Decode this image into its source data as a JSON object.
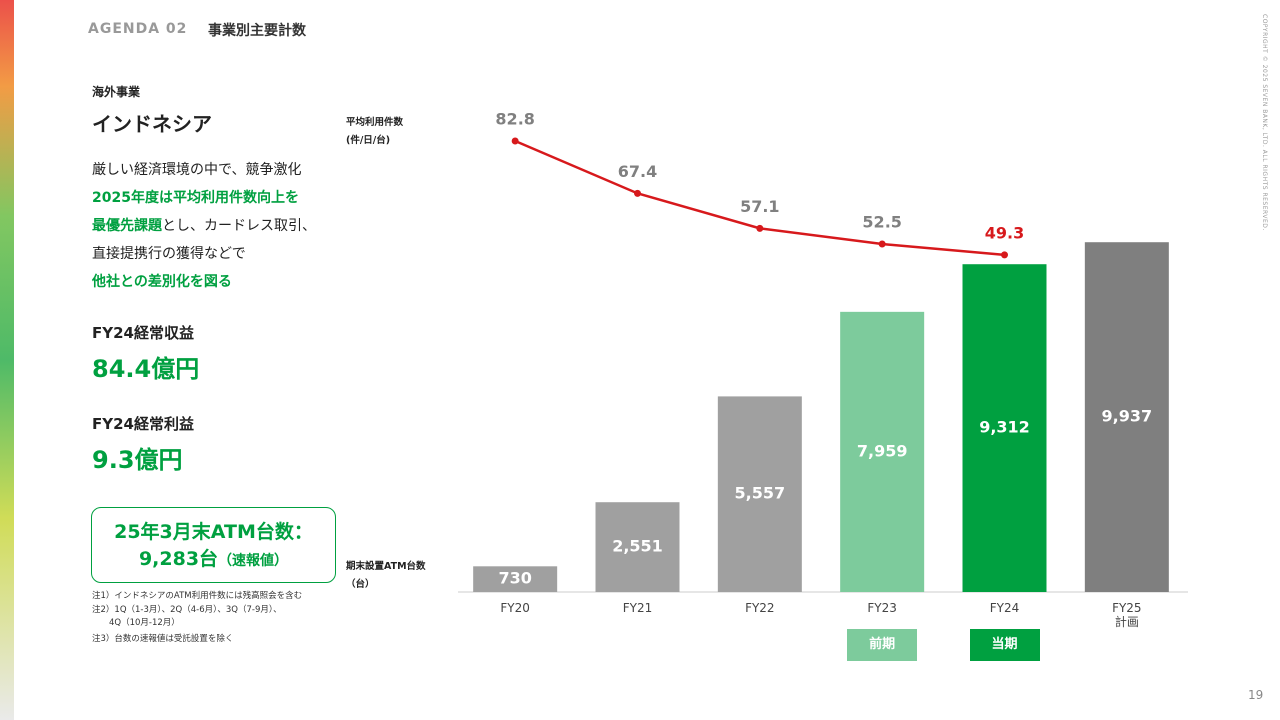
{
  "header": {
    "agenda": "AGENDA 02",
    "title": "事業別主要計数"
  },
  "copyright": "COPYRIGHT © 2025 SEVEN BANK, LTD. ALL RIGHTS RESERVED.",
  "page_number": "19",
  "segment": "海外事業",
  "country": "インドネシア",
  "summary": [
    [
      {
        "text": "厳しい経済環境の中で、競争激化",
        "emphasis": false
      }
    ],
    [
      {
        "text": "2025年度は平均利用件数向上を",
        "emphasis": true
      }
    ],
    [
      {
        "text": "最優先課題",
        "emphasis": true
      },
      {
        "text": "とし、カードレス取引、",
        "emphasis": false
      }
    ],
    [
      {
        "text": "直接提携行の獲得などで",
        "emphasis": false
      }
    ],
    [
      {
        "text": "他社との差別化を図る",
        "emphasis": true
      }
    ]
  ],
  "metrics": [
    {
      "label": "FY24経常収益",
      "value": "84.4億円"
    },
    {
      "label": "FY24経常利益",
      "value": "9.3億円"
    }
  ],
  "atm_box": {
    "line1": "25年3月末ATM台数：",
    "line2": "9,283台",
    "suffix": "（速報値）"
  },
  "notes": [
    "注1）インドネシアのATM利用件数には残高照会を含む",
    "注2）1Q（1-3月）、2Q（4-6月）、3Q（7-9月）、\n　　4Q（10月-12月）",
    "注3）台数の速報値は受託設置を除く"
  ],
  "chart_data": {
    "type": "bar_line",
    "y_label": "期末設置ATM台数\n（台）",
    "y2_label": "平均利用件数\n(件/日/台)",
    "categories": [
      "FY20",
      "FY21",
      "FY22",
      "FY23",
      "FY24",
      "FY25\n計画"
    ],
    "period_labels": [
      null,
      null,
      null,
      "前期",
      "当期",
      null
    ],
    "period_colors": [
      null,
      null,
      null,
      "#7dcb9c",
      "#00a040",
      null
    ],
    "ylim": [
      0,
      10000
    ],
    "y2lim": [
      40,
      90
    ],
    "series": [
      {
        "type": "bar",
        "axis": "y",
        "values": [
          730,
          2551,
          5557,
          7959,
          9312,
          9937
        ],
        "value_labels": [
          "730",
          "2,551",
          "5,557",
          "7,959",
          "9,312",
          "9,937"
        ],
        "colors": [
          "#a0a0a0",
          "#a0a0a0",
          "#a0a0a0",
          "#7dcb9c",
          "#00a040",
          "#7f7f7f"
        ]
      },
      {
        "type": "line",
        "axis": "y2",
        "color": "#d7191c",
        "values": [
          82.8,
          67.4,
          57.1,
          52.5,
          49.3,
          null
        ],
        "label_colors": [
          "#808080",
          "#808080",
          "#808080",
          "#808080",
          "#d7191c",
          null
        ]
      }
    ]
  }
}
